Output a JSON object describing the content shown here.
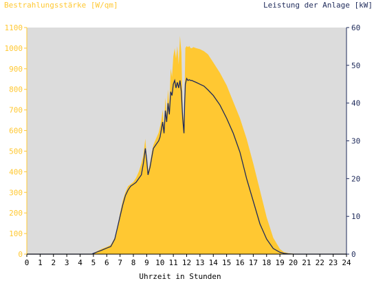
{
  "chart_data": {
    "type": "area",
    "left_axis_title": "Bestrahlungsstärke [W/qm]",
    "right_axis_title": "Leistung der Anlage [kW]",
    "xlabel": "Uhrzeit in Stunden",
    "xlim": [
      0,
      24
    ],
    "y_left_lim": [
      0,
      1100
    ],
    "y_right_lim": [
      0,
      60
    ],
    "x_ticks": [
      "0",
      "1",
      "2",
      "3",
      "4",
      "5",
      "6",
      "7",
      "8",
      "9",
      "10",
      "11",
      "12",
      "13",
      "14",
      "15",
      "16",
      "17",
      "18",
      "19",
      "20",
      "21",
      "22",
      "23",
      "24"
    ],
    "y_left_ticks": [
      "0",
      "100",
      "200",
      "300",
      "400",
      "500",
      "600",
      "700",
      "800",
      "900",
      "1000",
      "1100"
    ],
    "y_right_ticks": [
      "0",
      "10",
      "20",
      "30",
      "40",
      "50",
      "60"
    ],
    "grid": false,
    "colors": {
      "background": "#dcdcdc",
      "irradiance_fill": "#ffc832",
      "left_axis": "#ffc832",
      "power_line": "#1e2a5a",
      "right_axis": "#1e2a5a"
    },
    "series": [
      {
        "name": "Bestrahlungsstärke [W/qm]",
        "axis": "left",
        "style": "area",
        "x": [
          0,
          4.9,
          5.0,
          5.3,
          5.6,
          6.0,
          6.3,
          6.6,
          6.8,
          7.0,
          7.2,
          7.4,
          7.6,
          7.8,
          8.0,
          8.2,
          8.4,
          8.6,
          8.75,
          8.9,
          9.0,
          9.1,
          9.25,
          9.4,
          9.5,
          9.7,
          9.9,
          10.0,
          10.1,
          10.2,
          10.3,
          10.4,
          10.5,
          10.6,
          10.7,
          10.8,
          10.9,
          11.0,
          11.1,
          11.2,
          11.3,
          11.4,
          11.5,
          11.6,
          11.7,
          11.8,
          11.85,
          11.9,
          12.0,
          12.1,
          12.2,
          12.3,
          12.4,
          12.5,
          12.7,
          13.0,
          13.3,
          13.6,
          14.0,
          14.5,
          15.0,
          15.5,
          16.0,
          16.5,
          17.0,
          17.5,
          18.0,
          18.5,
          19.0,
          19.3,
          19.6,
          20.0,
          20.3,
          20.5,
          24
        ],
        "y": [
          0,
          0,
          5,
          15,
          25,
          35,
          45,
          80,
          130,
          200,
          260,
          300,
          330,
          340,
          350,
          370,
          400,
          440,
          480,
          560,
          470,
          400,
          440,
          500,
          530,
          560,
          590,
          620,
          650,
          700,
          620,
          760,
          680,
          800,
          720,
          900,
          860,
          960,
          1000,
          950,
          1010,
          920,
          1060,
          980,
          700,
          640,
          800,
          1000,
          1010,
          1005,
          1010,
          1000,
          1000,
          1005,
          1000,
          995,
          985,
          970,
          930,
          880,
          820,
          740,
          660,
          560,
          440,
          310,
          180,
          80,
          25,
          10,
          5,
          2,
          0,
          0,
          0
        ]
      },
      {
        "name": "Leistung der Anlage [kW]",
        "axis": "right",
        "style": "line",
        "x": [
          0,
          4.9,
          5.0,
          5.3,
          5.6,
          6.0,
          6.3,
          6.6,
          6.8,
          7.0,
          7.2,
          7.4,
          7.6,
          7.8,
          8.0,
          8.2,
          8.4,
          8.6,
          8.75,
          8.9,
          9.0,
          9.1,
          9.25,
          9.4,
          9.5,
          9.7,
          9.9,
          10.0,
          10.1,
          10.2,
          10.3,
          10.4,
          10.5,
          10.6,
          10.7,
          10.8,
          10.9,
          11.0,
          11.1,
          11.2,
          11.3,
          11.4,
          11.5,
          11.6,
          11.7,
          11.8,
          11.85,
          11.9,
          12.0,
          12.1,
          12.2,
          12.3,
          12.4,
          12.5,
          12.7,
          13.0,
          13.3,
          13.6,
          14.0,
          14.5,
          15.0,
          15.5,
          16.0,
          16.5,
          17.0,
          17.5,
          18.0,
          18.5,
          19.0,
          19.3,
          19.6,
          20.0,
          20.3,
          20.5,
          24
        ],
        "y": [
          0,
          0,
          0.2,
          0.6,
          1.0,
          1.6,
          2.0,
          4.0,
          7.0,
          10.0,
          13.0,
          15.5,
          17.0,
          18.0,
          18.5,
          19.0,
          20.0,
          21.0,
          24.0,
          28.0,
          25.0,
          21.0,
          23.0,
          26.0,
          28.0,
          29.0,
          30.0,
          31.0,
          33.0,
          35.0,
          32.0,
          38.0,
          35.0,
          40.0,
          37.0,
          43.0,
          42.0,
          45.0,
          46.0,
          44.0,
          45.5,
          44.0,
          46.0,
          43.0,
          36.0,
          32.0,
          40.0,
          45.0,
          46.5,
          46.0,
          46.2,
          46.0,
          46.0,
          45.8,
          45.5,
          45.0,
          44.5,
          43.5,
          42.0,
          39.5,
          36.0,
          32.0,
          27.0,
          20.0,
          14.0,
          8.0,
          4.0,
          1.5,
          0.5,
          0.2,
          0.1,
          0,
          0,
          0,
          0
        ]
      }
    ]
  }
}
